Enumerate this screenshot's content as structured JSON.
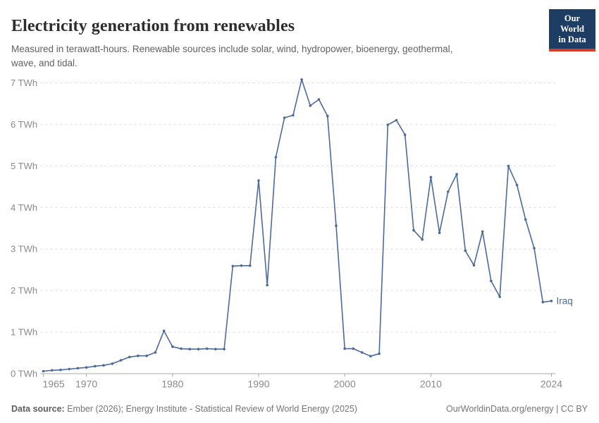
{
  "header": {
    "title": "Electricity generation from renewables",
    "subtitle_lines": [
      "Measured in terawatt-hours. Renewable sources include solar, wind, hydropower, bioenergy, geothermal,",
      "wave, and tidal."
    ]
  },
  "logo": {
    "line1": "Our World",
    "line2": "in Data",
    "bg_color": "#1d3d63",
    "accent_color": "#d93a2b"
  },
  "chart_data": {
    "type": "line",
    "title": "Electricity generation from renewables",
    "unit": "TWh",
    "xlim": [
      1965,
      2024
    ],
    "ylim": [
      0,
      7
    ],
    "grid": "horizontal-dashed",
    "legend_position": "end-of-line-label",
    "x_ticks": [
      1965,
      1970,
      1980,
      1990,
      2000,
      2010,
      2024
    ],
    "x_tick_labels": [
      "1965",
      "1970",
      "1980",
      "1990",
      "2000",
      "2010",
      "2024"
    ],
    "y_ticks": [
      0,
      1,
      2,
      3,
      4,
      5,
      6,
      7
    ],
    "y_tick_labels": [
      "0 TWh",
      "1 TWh",
      "2 TWh",
      "3 TWh",
      "4 TWh",
      "5 TWh",
      "6 TWh",
      "7 TWh"
    ],
    "x": [
      1965,
      1966,
      1967,
      1968,
      1969,
      1970,
      1971,
      1972,
      1973,
      1974,
      1975,
      1976,
      1977,
      1978,
      1979,
      1980,
      1981,
      1982,
      1983,
      1984,
      1985,
      1986,
      1987,
      1988,
      1989,
      1990,
      1991,
      1992,
      1993,
      1994,
      1995,
      1996,
      1997,
      1998,
      1999,
      2000,
      2001,
      2002,
      2003,
      2004,
      2005,
      2006,
      2007,
      2008,
      2009,
      2010,
      2011,
      2012,
      2013,
      2014,
      2015,
      2016,
      2017,
      2018,
      2019,
      2020,
      2021,
      2022,
      2023,
      2024
    ],
    "series": [
      {
        "name": "Iraq",
        "color": "#4c6a9c",
        "values": [
          0.06,
          0.08,
          0.09,
          0.11,
          0.13,
          0.15,
          0.18,
          0.2,
          0.24,
          0.32,
          0.4,
          0.43,
          0.43,
          0.51,
          1.03,
          0.65,
          0.6,
          0.59,
          0.59,
          0.6,
          0.59,
          0.59,
          2.59,
          2.6,
          2.6,
          4.65,
          2.13,
          5.21,
          6.16,
          6.22,
          7.08,
          6.45,
          6.6,
          6.2,
          3.56,
          0.6,
          0.6,
          0.51,
          0.42,
          0.48,
          5.99,
          6.1,
          5.75,
          3.45,
          3.23,
          4.73,
          3.39,
          4.38,
          4.8,
          2.96,
          2.61,
          3.42,
          2.23,
          1.85,
          5.0,
          4.54,
          3.71,
          3.02,
          1.72,
          1.75
        ]
      }
    ],
    "colors": {
      "grid": "#dcdcdc",
      "axis": "#a8a8a8",
      "tick_text": "#8a8a8a"
    }
  },
  "footer": {
    "datasource_label": "Data source:",
    "datasource_text": " Ember (2026); Energy Institute - Statistical Review of World Energy (2025)",
    "link_text": "OurWorldinData.org/energy | CC BY"
  }
}
